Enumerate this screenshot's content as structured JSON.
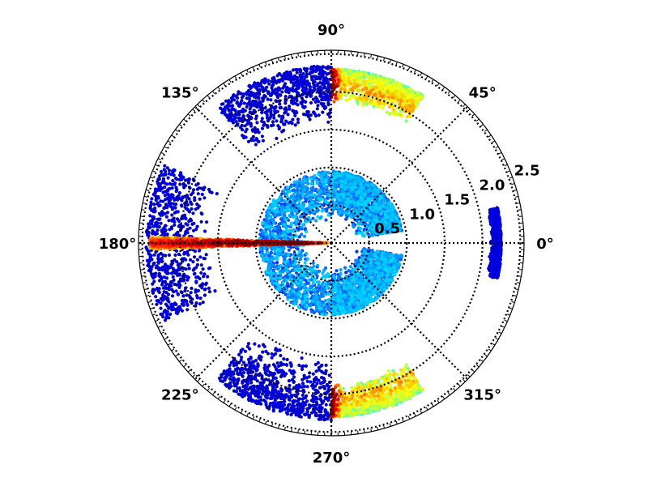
{
  "chart_data": {
    "type": "scatter",
    "projection": "polar",
    "title": "",
    "angular_ticks": [
      "0°",
      "45°",
      "90°",
      "135°",
      "180°",
      "225°",
      "270°",
      "315°"
    ],
    "angular_tick_degrees": [
      0,
      45,
      90,
      135,
      180,
      225,
      270,
      315
    ],
    "radial_ticks": [
      "0.5",
      "1.0",
      "1.5",
      "2.0",
      "2.5"
    ],
    "radial_tick_values": [
      0.5,
      1.0,
      1.5,
      2.0,
      2.5
    ],
    "radial_label_angle_deg": 22.5,
    "rlim": [
      0,
      2.55
    ],
    "grid": true,
    "colormap": "jet",
    "color_encodes": "point density",
    "density_scale_note": "",
    "clusters": [
      {
        "name": "",
        "theta_deg": [
          178,
          182
        ],
        "r": [
          0.05,
          2.4
        ],
        "peak_r": 0.55,
        "density": "high"
      },
      {
        "name": "",
        "theta_deg": [
          155,
          205
        ],
        "r": [
          1.6,
          2.45
        ],
        "density": "low"
      },
      {
        "name": "",
        "theta_deg": [
          90,
          130
        ],
        "r": [
          1.55,
          2.35
        ],
        "density": "low"
      },
      {
        "name": "",
        "theta_deg": [
          58,
          90
        ],
        "r": [
          1.85,
          2.3
        ],
        "peak_r": 2.05,
        "density": "high"
      },
      {
        "name": "",
        "theta_deg": [
          230,
          270
        ],
        "r": [
          1.55,
          2.35
        ],
        "density": "low"
      },
      {
        "name": "",
        "theta_deg": [
          270,
          302
        ],
        "r": [
          1.85,
          2.3
        ],
        "peak_r": 2.05,
        "density": "high"
      },
      {
        "name": "",
        "theta_deg": [
          90,
          270
        ],
        "r": [
          0.3,
          0.95
        ],
        "density": "medium"
      },
      {
        "name": "",
        "theta_deg": [
          10,
          90
        ],
        "r": [
          0.35,
          0.95
        ],
        "density": "medium"
      },
      {
        "name": "",
        "theta_deg": [
          270,
          350
        ],
        "r": [
          0.35,
          0.95
        ],
        "density": "medium"
      },
      {
        "name": "",
        "theta_deg": [
          -12,
          12
        ],
        "r": [
          2.1,
          2.25
        ],
        "density": "low"
      }
    ]
  }
}
